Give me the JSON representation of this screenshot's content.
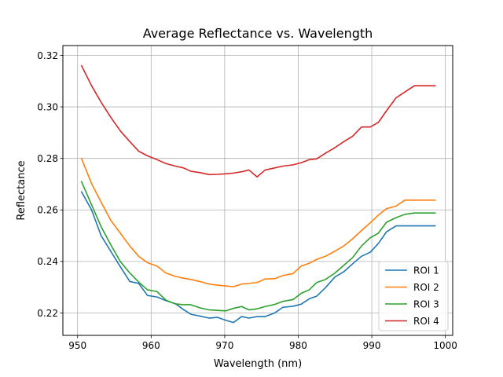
{
  "chart_data": {
    "type": "line",
    "title": "Average Reflectance vs. Wavelength",
    "xlabel": "Wavelength (nm)",
    "ylabel": "Reflectance",
    "xlim": [
      948.0,
      1001.0
    ],
    "ylim": [
      0.2113,
      0.3238
    ],
    "xticks": [
      950,
      960,
      970,
      980,
      990,
      1000
    ],
    "yticks": [
      0.22,
      0.24,
      0.26,
      0.28,
      0.3,
      0.32
    ],
    "ytick_labels": [
      "0.22",
      "0.24",
      "0.26",
      "0.28",
      "0.30",
      "0.32"
    ],
    "grid": true,
    "legend_position": "lower right",
    "x": [
      950.5,
      951.9,
      953.2,
      954.5,
      955.8,
      957.1,
      958.3,
      959.5,
      960.8,
      962.0,
      963.3,
      964.4,
      965.4,
      966.6,
      967.9,
      969.0,
      970.1,
      971.2,
      972.3,
      973.3,
      974.4,
      975.5,
      976.8,
      977.9,
      979.3,
      980.4,
      981.5,
      982.5,
      983.7,
      985.0,
      986.2,
      987.4,
      988.6,
      989.8,
      990.9,
      992.0,
      993.3,
      994.5,
      995.8,
      997.1,
      998.7
    ],
    "series": [
      {
        "name": "ROI 1",
        "color": "#1f77b4",
        "values": [
          0.2672,
          0.26,
          0.25,
          0.244,
          0.238,
          0.2322,
          0.2315,
          0.2268,
          0.2262,
          0.2248,
          0.2236,
          0.2213,
          0.2195,
          0.2188,
          0.218,
          0.2183,
          0.2172,
          0.2163,
          0.2186,
          0.218,
          0.2186,
          0.2186,
          0.22,
          0.2222,
          0.2226,
          0.2234,
          0.2255,
          0.2265,
          0.2298,
          0.234,
          0.236,
          0.2391,
          0.242,
          0.2436,
          0.247,
          0.2515,
          0.2538,
          0.2538,
          0.2538,
          0.2538,
          0.2538
        ]
      },
      {
        "name": "ROI 2",
        "color": "#ff7f0e",
        "values": [
          0.2802,
          0.2702,
          0.263,
          0.256,
          0.251,
          0.246,
          0.242,
          0.2395,
          0.2382,
          0.2355,
          0.2342,
          0.2335,
          0.233,
          0.2322,
          0.2312,
          0.2308,
          0.2305,
          0.2302,
          0.2312,
          0.2315,
          0.2318,
          0.2332,
          0.2333,
          0.2345,
          0.2353,
          0.2382,
          0.2393,
          0.2408,
          0.242,
          0.244,
          0.246,
          0.2488,
          0.252,
          0.255,
          0.258,
          0.2605,
          0.2615,
          0.2638,
          0.2638,
          0.2638,
          0.2638
        ]
      },
      {
        "name": "ROI 3",
        "color": "#2ca02c",
        "values": [
          0.2712,
          0.262,
          0.2535,
          0.2465,
          0.24,
          0.2355,
          0.232,
          0.229,
          0.2283,
          0.225,
          0.2235,
          0.2232,
          0.2232,
          0.222,
          0.2212,
          0.221,
          0.2208,
          0.2218,
          0.2225,
          0.2212,
          0.2216,
          0.2225,
          0.2233,
          0.2245,
          0.2252,
          0.2276,
          0.229,
          0.2318,
          0.233,
          0.2355,
          0.2385,
          0.2415,
          0.246,
          0.2492,
          0.251,
          0.2552,
          0.257,
          0.2583,
          0.2588,
          0.2588,
          0.2588
        ]
      },
      {
        "name": "ROI 4",
        "color": "#d62728",
        "values": [
          0.3162,
          0.3082,
          0.3018,
          0.296,
          0.2907,
          0.2865,
          0.2828,
          0.281,
          0.2795,
          0.278,
          0.277,
          0.2763,
          0.275,
          0.2745,
          0.2737,
          0.2738,
          0.274,
          0.2743,
          0.2748,
          0.2755,
          0.2728,
          0.2755,
          0.2763,
          0.277,
          0.2775,
          0.2783,
          0.2795,
          0.2798,
          0.282,
          0.2842,
          0.2865,
          0.2886,
          0.2922,
          0.2922,
          0.294,
          0.2985,
          0.3035,
          0.3058,
          0.3082,
          0.3082,
          0.3082
        ]
      }
    ]
  }
}
